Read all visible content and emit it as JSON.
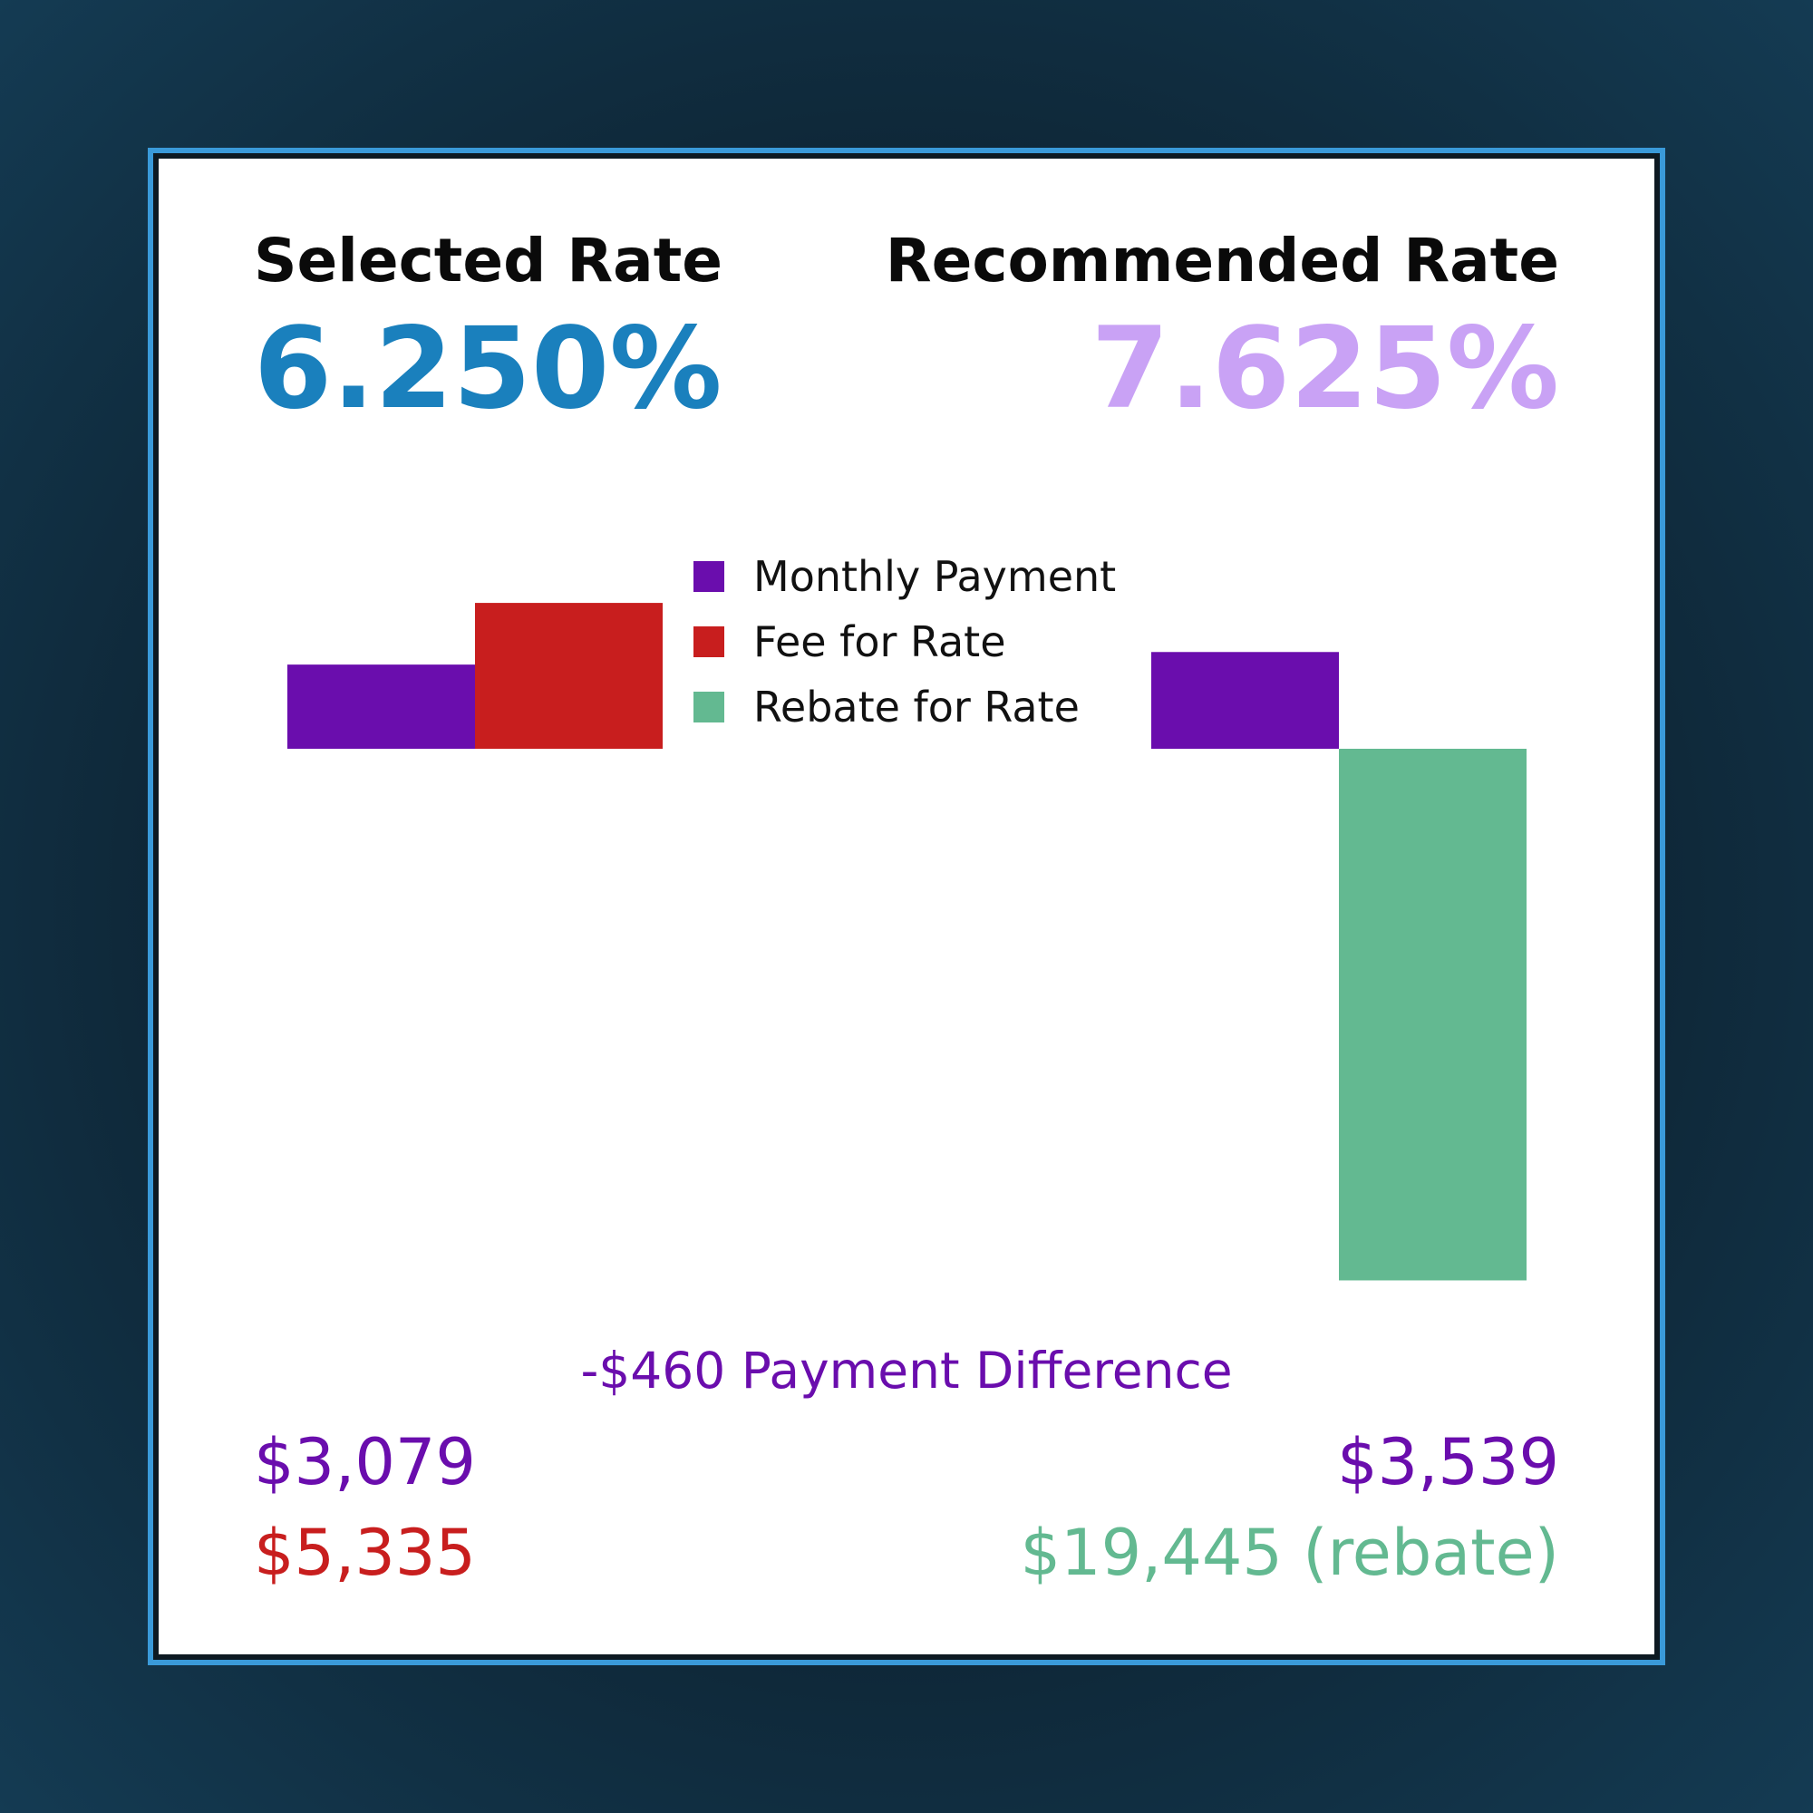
{
  "colors": {
    "monthly_payment": "#6a0dad",
    "fee": "#c81e1e",
    "rebate": "#63b991",
    "selected_rate": "#1a80bd",
    "recommended_rate": "#c9a2f5",
    "difference_text": "#6a0dad"
  },
  "selected": {
    "label": "Selected Rate",
    "rate": "6.250%",
    "payment_text": "$3,079",
    "fee_text": "$5,335"
  },
  "recommended": {
    "label": "Recommended Rate",
    "rate": "7.625%",
    "payment_text": "$3,539",
    "rebate_text": "$19,445 (rebate)"
  },
  "difference_text": "-$460 Payment Difference",
  "chart_data": {
    "type": "bar",
    "categories": [
      "Selected Rate",
      "Recommended Rate"
    ],
    "series": [
      {
        "name": "Monthly Payment",
        "values": [
          3079,
          3539
        ]
      },
      {
        "name": "Fee for Rate",
        "values": [
          5335,
          0
        ]
      },
      {
        "name": "Rebate for Rate",
        "values": [
          0,
          -19445
        ]
      }
    ],
    "title": "",
    "xlabel": "",
    "ylabel": "",
    "ylim": [
      -19445,
      5335
    ],
    "grid": false,
    "legend_position": "top-center"
  }
}
